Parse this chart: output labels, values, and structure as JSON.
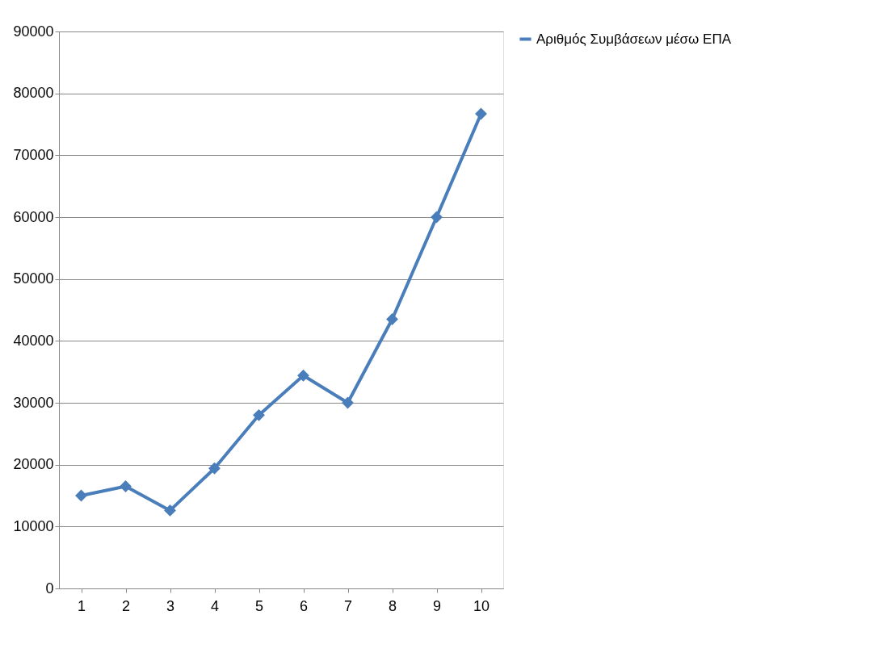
{
  "chart_data": {
    "type": "line",
    "categories": [
      "1",
      "2",
      "3",
      "4",
      "5",
      "6",
      "7",
      "8",
      "9",
      "10"
    ],
    "series": [
      {
        "name": "Αριθμός Συμβάσεων μέσω ΕΠΑ",
        "color": "#4a7ebb",
        "values": [
          15000,
          16500,
          12600,
          19400,
          28000,
          34400,
          30000,
          43500,
          60000,
          76700
        ]
      }
    ],
    "ylim": [
      0,
      90000
    ],
    "yticks": [
      0,
      10000,
      20000,
      30000,
      40000,
      50000,
      60000,
      70000,
      80000,
      90000
    ],
    "grid": "y",
    "legend": "right",
    "marker": "diamond",
    "line_style": "solid"
  }
}
